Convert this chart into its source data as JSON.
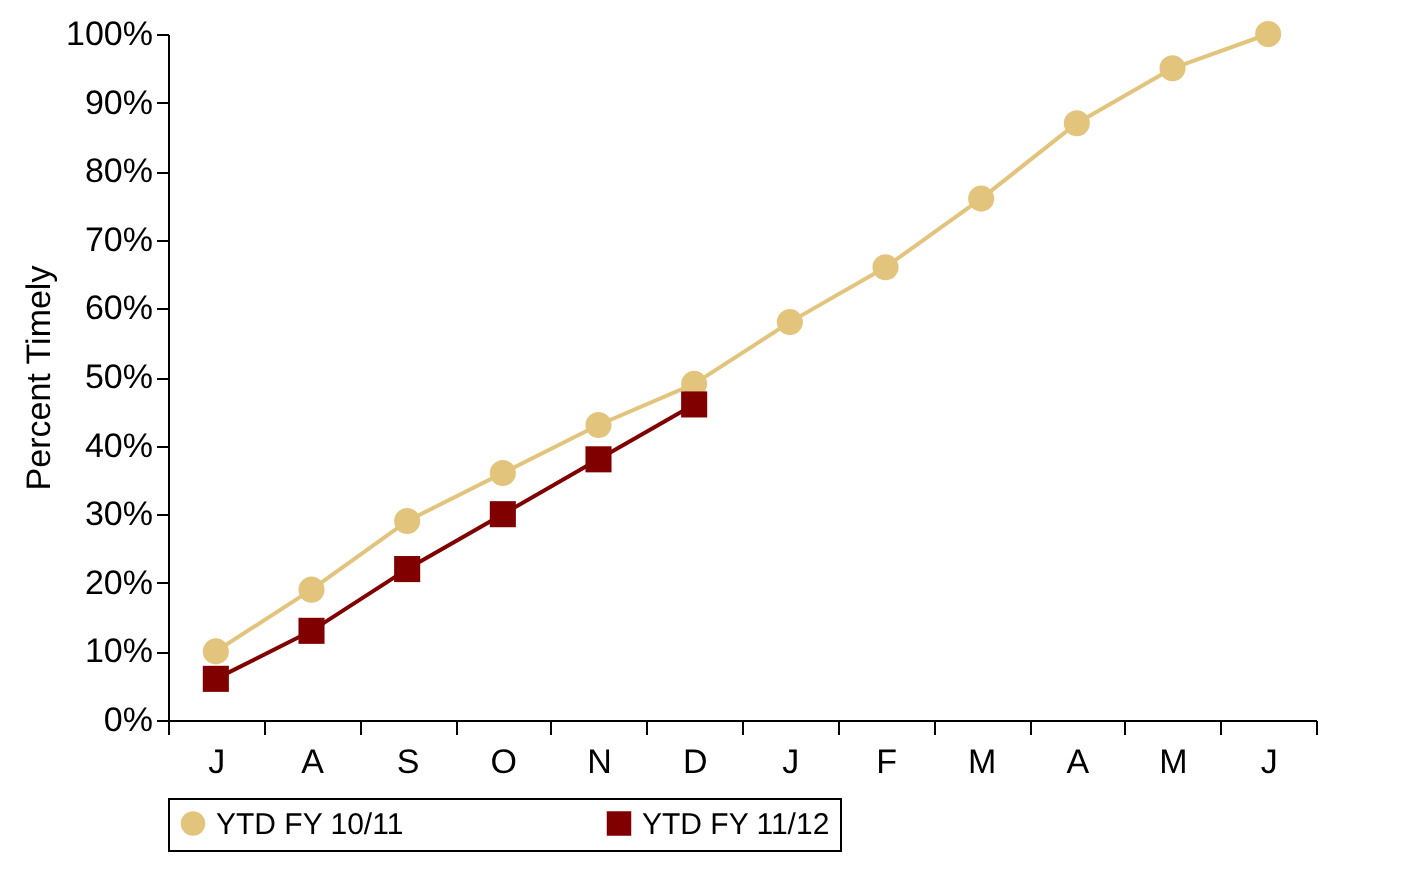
{
  "chart_data": {
    "type": "line",
    "ylabel": "Percent Timely",
    "categories": [
      "J",
      "A",
      "S",
      "O",
      "N",
      "D",
      "J",
      "F",
      "M",
      "A",
      "M",
      "J"
    ],
    "series": [
      {
        "name": "YTD FY 10/11",
        "color": "#e3c47c",
        "marker": "circle",
        "values": [
          10,
          19,
          29,
          36,
          43,
          49,
          58,
          66,
          76,
          87,
          95,
          100
        ]
      },
      {
        "name": "YTD FY 11/12",
        "color": "#800000",
        "marker": "square",
        "values": [
          6,
          13,
          22,
          30,
          38,
          46,
          null,
          null,
          null,
          null,
          null,
          null
        ]
      }
    ],
    "ylim": [
      0,
      100
    ],
    "yticks": [
      {
        "value": 0,
        "label": "0%"
      },
      {
        "value": 10,
        "label": "10%"
      },
      {
        "value": 20,
        "label": "20%"
      },
      {
        "value": 30,
        "label": "30%"
      },
      {
        "value": 40,
        "label": "40%"
      },
      {
        "value": 50,
        "label": "50%"
      },
      {
        "value": 60,
        "label": "60%"
      },
      {
        "value": 70,
        "label": "70%"
      },
      {
        "value": 80,
        "label": "80%"
      },
      {
        "value": 90,
        "label": "90%"
      },
      {
        "value": 100,
        "label": "100%"
      }
    ],
    "grid": false,
    "legend": "bottom",
    "line_style": "solid"
  }
}
